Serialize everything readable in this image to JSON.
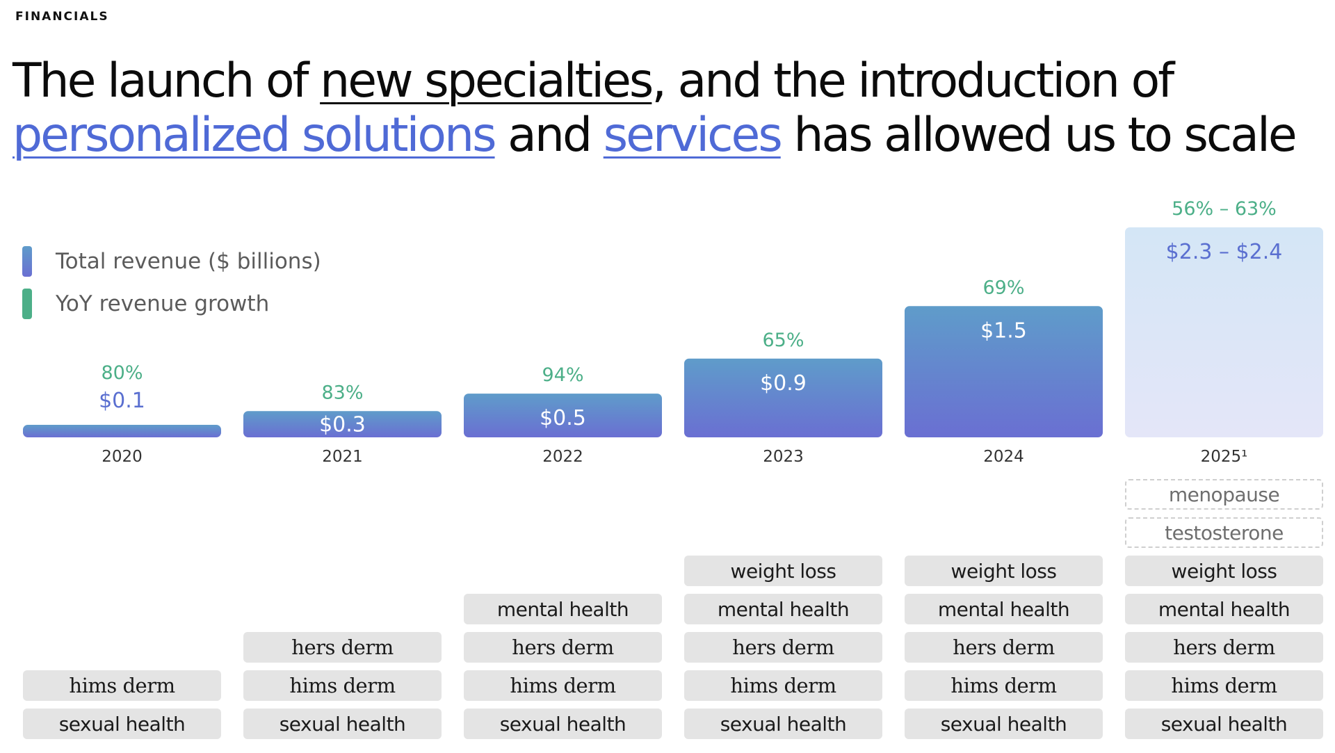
{
  "section_label": "FINANCIALS",
  "headline": {
    "part1": "The launch of ",
    "link1": "new specialties",
    "part2": ", and the introduction of",
    "link2": "personalized solutions",
    "part3": " and ",
    "link3": "services",
    "part4": " has allowed us to scale"
  },
  "legend": {
    "revenue_label": "Total revenue ($ billions)",
    "growth_label": "YoY revenue growth"
  },
  "colors": {
    "bar_top": "#5f9cca",
    "bar_bottom": "#6a6fd2",
    "projected_top": "#d4e6f6",
    "projected_bottom": "#e4e6f8",
    "growth": "#4caf88",
    "revenue_label_on_bar": "#ffffff",
    "revenue_label_above": "#5a6fd0",
    "headline_link": "#4f6ad6"
  },
  "chart_data": {
    "type": "bar",
    "title": "Total revenue ($ billions) and YoY revenue growth",
    "categories": [
      "2020",
      "2021",
      "2022",
      "2023",
      "2024",
      "2025"
    ],
    "category_labels": [
      "2020",
      "2021",
      "2022",
      "2023",
      "2024",
      "2025¹"
    ],
    "series": [
      {
        "name": "Total revenue ($ billions)",
        "values": [
          0.1,
          0.3,
          0.5,
          0.9,
          1.5,
          2.4
        ],
        "labels": [
          "$0.1",
          "$0.3",
          "$0.5",
          "$0.9",
          "$1.5",
          "$2.3 – $2.4"
        ],
        "projected": [
          false,
          false,
          false,
          false,
          false,
          true
        ]
      },
      {
        "name": "YoY revenue growth",
        "labels": [
          "80%",
          "83%",
          "94%",
          "65%",
          "69%",
          "56% – 63%"
        ]
      }
    ],
    "ylim": [
      0,
      2.4
    ],
    "xlabel": "",
    "ylabel": ""
  },
  "specialties": [
    {
      "year": "2020",
      "items": [
        {
          "label": "hims derm",
          "style": "brand"
        },
        {
          "label": "sexual health",
          "style": "plain"
        }
      ]
    },
    {
      "year": "2021",
      "items": [
        {
          "label": "hers derm",
          "style": "brand"
        },
        {
          "label": "hims derm",
          "style": "brand"
        },
        {
          "label": "sexual health",
          "style": "plain"
        }
      ]
    },
    {
      "year": "2022",
      "items": [
        {
          "label": "mental health",
          "style": "plain"
        },
        {
          "label": "hers derm",
          "style": "brand"
        },
        {
          "label": "hims derm",
          "style": "brand"
        },
        {
          "label": "sexual health",
          "style": "plain"
        }
      ]
    },
    {
      "year": "2023",
      "items": [
        {
          "label": "weight loss",
          "style": "plain"
        },
        {
          "label": "mental health",
          "style": "plain"
        },
        {
          "label": "hers derm",
          "style": "brand"
        },
        {
          "label": "hims derm",
          "style": "brand"
        },
        {
          "label": "sexual health",
          "style": "plain"
        }
      ]
    },
    {
      "year": "2024",
      "items": [
        {
          "label": "weight loss",
          "style": "plain"
        },
        {
          "label": "mental health",
          "style": "plain"
        },
        {
          "label": "hers derm",
          "style": "brand"
        },
        {
          "label": "hims derm",
          "style": "brand"
        },
        {
          "label": "sexual health",
          "style": "plain"
        }
      ]
    },
    {
      "year": "2025",
      "items": [
        {
          "label": "menopause",
          "style": "dashed"
        },
        {
          "label": "testosterone",
          "style": "dashed"
        },
        {
          "label": "weight loss",
          "style": "plain"
        },
        {
          "label": "mental health",
          "style": "plain"
        },
        {
          "label": "hers derm",
          "style": "brand"
        },
        {
          "label": "hims derm",
          "style": "brand"
        },
        {
          "label": "sexual health",
          "style": "plain"
        }
      ]
    }
  ]
}
